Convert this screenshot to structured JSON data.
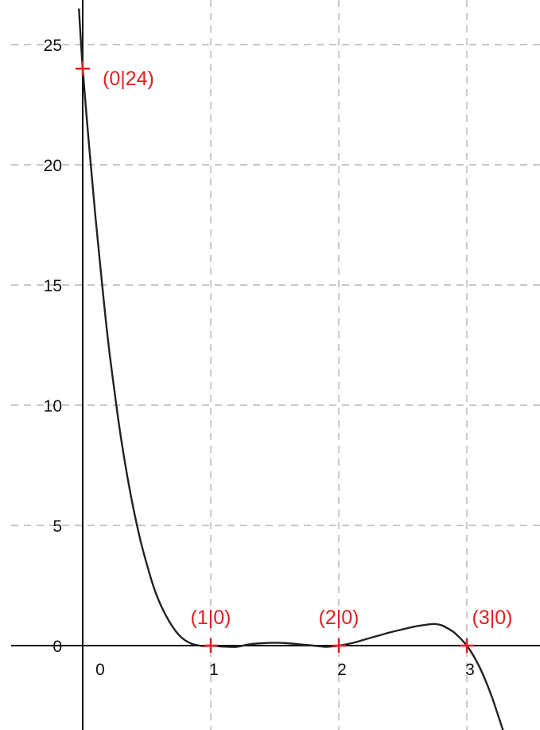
{
  "chart_data": {
    "type": "line",
    "title": "",
    "xlabel": "",
    "ylabel": "",
    "xlim": [
      -0.57,
      3.5
    ],
    "ylim": [
      -3.5,
      26.5
    ],
    "grid": true,
    "x_ticks": [
      {
        "value": 0,
        "label": "0"
      },
      {
        "value": 1,
        "label": "1"
      },
      {
        "value": 2,
        "label": "2"
      },
      {
        "value": 3,
        "label": "3"
      }
    ],
    "y_ticks": [
      {
        "value": 0,
        "label": "0"
      },
      {
        "value": 5,
        "label": "5"
      },
      {
        "value": 10,
        "label": "10"
      },
      {
        "value": 15,
        "label": "15"
      },
      {
        "value": 20,
        "label": "20"
      },
      {
        "value": 25,
        "label": "25"
      }
    ],
    "curve": {
      "x": [
        -0.03,
        0,
        0.05,
        0.1,
        0.15,
        0.2,
        0.25,
        0.3,
        0.35,
        0.4,
        0.45,
        0.5,
        0.55,
        0.6,
        0.65,
        0.7,
        0.75,
        0.8,
        0.85,
        0.9,
        0.95,
        1,
        1.1,
        1.2,
        1.3,
        1.4,
        1.5,
        1.6,
        1.7,
        1.8,
        1.9,
        2,
        2.1,
        2.2,
        2.3,
        2.4,
        2.5,
        2.6,
        2.7,
        2.75,
        2.8,
        2.85,
        2.9,
        2.95,
        3,
        3.05,
        3.1,
        3.15,
        3.2,
        3.25,
        3.3,
        3.35
      ],
      "y": [
        26.5,
        24,
        20.8,
        17.8,
        15.1,
        12.6,
        10.5,
        8.6,
        7.0,
        5.6,
        4.4,
        3.4,
        2.5,
        1.8,
        1.25,
        0.8,
        0.45,
        0.22,
        0.08,
        0.01,
        -0.02,
        0,
        -0.04,
        -0.05,
        0.05,
        0.1,
        0.12,
        0.1,
        0.05,
        0.0,
        -0.05,
        0,
        0.1,
        0.25,
        0.4,
        0.55,
        0.68,
        0.8,
        0.88,
        0.9,
        0.85,
        0.72,
        0.55,
        0.3,
        0,
        -0.4,
        -0.9,
        -1.5,
        -2.2,
        -3.0,
        -3.8,
        -4.6
      ]
    },
    "points": [
      {
        "x": 0,
        "y": 24,
        "label": "(0|24)"
      },
      {
        "x": 1,
        "y": 0,
        "label": "(1|0)"
      },
      {
        "x": 2,
        "y": 0,
        "label": "(2|0)"
      },
      {
        "x": 3,
        "y": 0,
        "label": "(3|0)"
      }
    ]
  },
  "colors": {
    "curve": "#222222",
    "axis": "#111111",
    "grid": "#b5b5b5",
    "point": "#e02020",
    "tick_text": "#111111"
  }
}
